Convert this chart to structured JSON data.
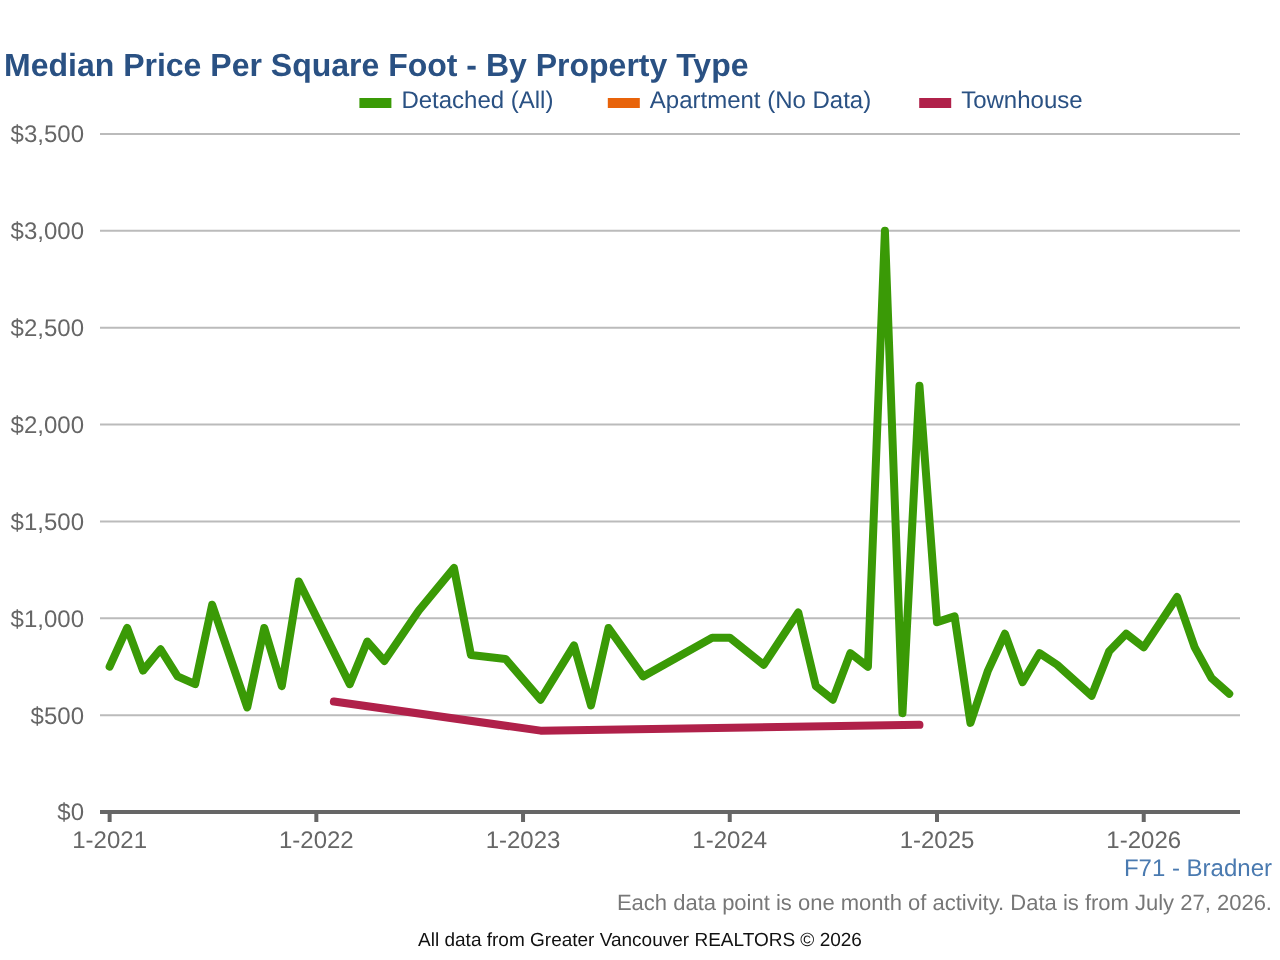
{
  "chart_data": {
    "type": "line",
    "title": "Median Price Per Square Foot - By Property Type",
    "xlim": [
      "2020-12-15",
      "2026-06-20"
    ],
    "xticks": [
      {
        "value": "2021-01",
        "label": "1-2021"
      },
      {
        "value": "2022-01",
        "label": "1-2022"
      },
      {
        "value": "2023-01",
        "label": "1-2023"
      },
      {
        "value": "2024-01",
        "label": "1-2024"
      },
      {
        "value": "2025-01",
        "label": "1-2025"
      },
      {
        "value": "2026-01",
        "label": "1-2026"
      }
    ],
    "ylim": [
      0,
      3500
    ],
    "yticks": [
      {
        "value": 0,
        "label": "$0"
      },
      {
        "value": 500,
        "label": "$500"
      },
      {
        "value": 1000,
        "label": "$1,000"
      },
      {
        "value": 1500,
        "label": "$1,500"
      },
      {
        "value": 2000,
        "label": "$2,000"
      },
      {
        "value": 2500,
        "label": "$2,500"
      },
      {
        "value": 3000,
        "label": "$3,000"
      },
      {
        "value": 3500,
        "label": "$3,500"
      }
    ],
    "grid": "y",
    "legend": "top",
    "marker": "none",
    "line_style": "solid",
    "series": [
      {
        "name": "Detached (All)",
        "color": "#3a9a06",
        "x": [
          "2021-01",
          "2021-02",
          "2021-03",
          "2021-04",
          "2021-05",
          "2021-06",
          "2021-07",
          "2021-09",
          "2021-10",
          "2021-11",
          "2021-12",
          "2022-03",
          "2022-04",
          "2022-05",
          "2022-07",
          "2022-09",
          "2022-10",
          "2022-12",
          "2023-02",
          "2023-04",
          "2023-05",
          "2023-06",
          "2023-08",
          "2023-12",
          "2024-01",
          "2024-03",
          "2024-05",
          "2024-06",
          "2024-07",
          "2024-08",
          "2024-09",
          "2024-10",
          "2024-11",
          "2024-12",
          "2025-01",
          "2025-02",
          "2025-03",
          "2025-04",
          "2025-05",
          "2025-06",
          "2025-07",
          "2025-08",
          "2025-10",
          "2025-11",
          "2025-12",
          "2026-01",
          "2026-03",
          "2026-04",
          "2026-05",
          "2026-06"
        ],
        "values": [
          750,
          950,
          730,
          840,
          700,
          660,
          1070,
          540,
          950,
          650,
          1190,
          660,
          880,
          780,
          1040,
          1260,
          810,
          790,
          580,
          860,
          550,
          950,
          700,
          900,
          900,
          760,
          1030,
          650,
          580,
          820,
          750,
          3000,
          510,
          2200,
          980,
          1010,
          460,
          730,
          920,
          670,
          820,
          760,
          600,
          830,
          920,
          850,
          1110,
          850,
          690,
          610
        ]
      },
      {
        "name": "Apartment (No Data)",
        "color": "#e8630a"
      },
      {
        "name": "Townhouse",
        "color": "#b0214a",
        "x": [
          "2022-02",
          "2023-02",
          "2024-12"
        ],
        "values": [
          570,
          420,
          450
        ]
      }
    ],
    "annotations": [
      "F71 - Bradner",
      "Each data point is one month of activity. Data is from July 27, 2026.",
      "All data from Greater Vancouver REALTORS © 2026"
    ]
  }
}
